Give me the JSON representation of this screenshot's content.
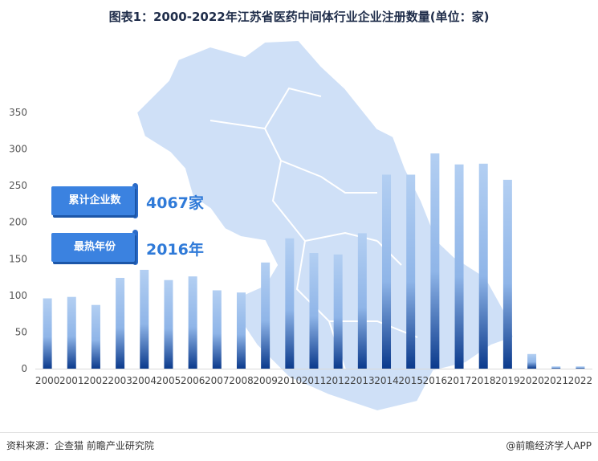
{
  "title": "图表1：2000-2022年江苏省医药中间体行业企业注册数量(单位：家)",
  "callouts": [
    {
      "label": "累计企业数",
      "value": "4067家"
    },
    {
      "label": "最热年份",
      "value": "2016年"
    }
  ],
  "source": "资料来源：企查猫 前瞻产业研究院",
  "brand": "@前瞻经济学人APP",
  "watermark": "前瞻产业研究院",
  "colors": {
    "bar_top": "#b3cff2",
    "bar_bottom": "#0b3a8c",
    "map": "#cfe0f7",
    "callout": "#3b82e0",
    "value": "#2f7ad8"
  },
  "chart_data": {
    "type": "bar",
    "categories": [
      "2000",
      "2001",
      "2002",
      "2003",
      "2004",
      "2005",
      "2006",
      "2007",
      "2008",
      "2009",
      "2010",
      "2011",
      "2012",
      "2013",
      "2014",
      "2015",
      "2016",
      "2017",
      "2018",
      "2019",
      "2020",
      "2021",
      "2022"
    ],
    "values": [
      96,
      98,
      87,
      124,
      135,
      121,
      126,
      107,
      104,
      145,
      178,
      158,
      156,
      185,
      265,
      265,
      294,
      279,
      280,
      258,
      20,
      3,
      3
    ],
    "ylim": [
      0,
      350
    ],
    "yticks": [
      0,
      50,
      100,
      150,
      200,
      250,
      300,
      350
    ],
    "grid": false
  }
}
